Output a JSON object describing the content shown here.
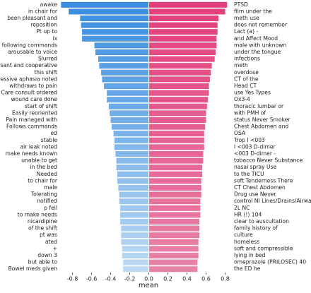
{
  "chart_data": {
    "type": "diverging-bar",
    "xlabel": "mean",
    "xlim": [
      -0.93,
      0.87
    ],
    "xticks": [
      -0.8,
      -0.6,
      -0.4,
      -0.2,
      {
        "value": 0,
        "label": "0.0"
      },
      0.2,
      0.4,
      0.6,
      0.8
    ],
    "series": [
      {
        "color": [
          "#3a8de0",
          "#bdd9f3"
        ],
        "labels": [
          "awake",
          "in chair for",
          "been pleasant and",
          "reposition",
          "Pt up to",
          "ix",
          "following commands",
          "arousable to voice",
          "Slurred",
          "pleasant and cooperative",
          "this shift",
          "expressive aphasia noted",
          "withdraws to pain",
          "Care consult ordered",
          "wound care done",
          "start of shift",
          "Easily reoriented",
          "Pain managed with",
          "Follows commands",
          "ed",
          "stable",
          "air leak noted",
          "make needs known",
          "unable to get",
          "in the bed",
          "Needed",
          "to chair for",
          "male",
          "Tolerating",
          "notified",
          "p fell",
          "to make needs",
          "nicardipine",
          "of the shift",
          "pt was",
          "ated",
          "+",
          "down 3",
          "but able to",
          "Bowel meds given"
        ],
        "values": [
          -0.92,
          -0.84,
          -0.72,
          -0.71,
          -0.7,
          -0.7,
          -0.57,
          -0.56,
          -0.53,
          -0.52,
          -0.5,
          -0.49,
          -0.47,
          -0.44,
          -0.44,
          -0.42,
          -0.41,
          -0.4,
          -0.39,
          -0.37,
          -0.36,
          -0.36,
          -0.35,
          -0.34,
          -0.34,
          -0.33,
          -0.33,
          -0.32,
          -0.31,
          -0.31,
          -0.3,
          -0.3,
          -0.3,
          -0.29,
          -0.29,
          -0.29,
          -0.28,
          -0.28,
          -0.27,
          -0.27
        ]
      },
      {
        "color": [
          "#e43f7b",
          "#e883a8"
        ],
        "labels": [
          "PTSD",
          "film under the",
          "meth use",
          "does not remember",
          "Lact (a) -",
          "and Affect Mood",
          "male with unknown",
          "under the tongue",
          "infections",
          "meth",
          "overdose",
          "CT of the",
          "Head CT",
          "use Yes Types",
          "Ox3-4",
          "thoracic lumbar or",
          "with PMH of",
          "status Never Smoker",
          "Chest Abdomen and",
          "OSA",
          "Trop I <003",
          "I <003 D-dimer",
          "<003 D-dimer -",
          "tobacco Never Substance",
          "nasal spray Use",
          "to the TICU",
          "soft Tenderness There",
          "CT Chest Abdomen",
          "Drug use Never",
          "control NI Lines/Drains/Airways",
          "2L NC",
          "HR (!) 104",
          "clear to auscultation",
          "family history of",
          "culture",
          "homeless",
          "soft and compressible",
          "lying in bed",
          "omeprazole (PRILOSEC) 40",
          "the ED he"
        ],
        "values": [
          0.82,
          0.8,
          0.73,
          0.72,
          0.72,
          0.71,
          0.71,
          0.7,
          0.69,
          0.66,
          0.65,
          0.64,
          0.63,
          0.63,
          0.62,
          0.61,
          0.6,
          0.6,
          0.59,
          0.58,
          0.58,
          0.58,
          0.57,
          0.57,
          0.56,
          0.56,
          0.55,
          0.55,
          0.55,
          0.54,
          0.54,
          0.54,
          0.53,
          0.53,
          0.53,
          0.52,
          0.52,
          0.52,
          0.51,
          0.51
        ]
      }
    ]
  }
}
